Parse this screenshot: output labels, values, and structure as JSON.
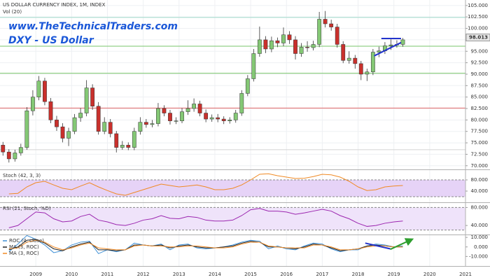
{
  "chart_data": [
    {
      "type": "candlestick",
      "title": "US DOLLAR CURRENCY INDEX, 1M, INDEX",
      "subtitle": "Vol (20)",
      "website": "www.TheTechnicalTraders.com",
      "label": "DXY - US Dollar",
      "x": [
        2008.083,
        2008.25,
        2008.417,
        2008.583,
        2008.75,
        2008.917,
        2009.083,
        2009.25,
        2009.417,
        2009.583,
        2009.75,
        2009.917,
        2010.083,
        2010.25,
        2010.417,
        2010.583,
        2010.75,
        2010.917,
        2011.083,
        2011.25,
        2011.417,
        2011.583,
        2011.75,
        2011.917,
        2012.083,
        2012.25,
        2012.417,
        2012.583,
        2012.75,
        2012.917,
        2013.083,
        2013.25,
        2013.417,
        2013.583,
        2013.75,
        2013.917,
        2014.083,
        2014.25,
        2014.417,
        2014.583,
        2014.75,
        2014.917,
        2015.083,
        2015.25,
        2015.417,
        2015.583,
        2015.75,
        2015.917,
        2016.083,
        2016.25,
        2016.417,
        2016.583,
        2016.75,
        2016.917,
        2017.083,
        2017.25,
        2017.417,
        2017.583,
        2017.75,
        2017.917,
        2018.083,
        2018.25,
        2018.417,
        2018.583,
        2018.75,
        2018.917,
        2019.083,
        2019.25
      ],
      "open": [
        74.5,
        73,
        71.5,
        72.8,
        74,
        82,
        85,
        88.5,
        84,
        80,
        78.5,
        76,
        77.5,
        80.5,
        81.5,
        87,
        83,
        77.5,
        79.5,
        77,
        74,
        74.5,
        74,
        77.5,
        79.5,
        79,
        79.2,
        82.5,
        81.5,
        79.8,
        79.8,
        81.8,
        82.5,
        83.5,
        81.5,
        80.2,
        80.5,
        80.2,
        79.8,
        80,
        81.5,
        85.8,
        89,
        94.5,
        97.5,
        95.5,
        97.3,
        96.8,
        98.6,
        97.5,
        94.5,
        95.9,
        95.8,
        96.5,
        102,
        101,
        100.3,
        96.5,
        93,
        93.5,
        92.3,
        90,
        90.5,
        94.8,
        95.1,
        96.2,
        96.4,
        96.5
      ],
      "high": [
        75.2,
        73.6,
        73.5,
        74.8,
        82.8,
        86.5,
        89.6,
        89.2,
        84.8,
        80.9,
        79.3,
        78.3,
        81.3,
        82.6,
        88.7,
        87.8,
        83.9,
        80.6,
        80.2,
        77.6,
        75.4,
        75.1,
        78.3,
        80.6,
        80.2,
        80,
        83.7,
        83.2,
        82.2,
        80.6,
        82.6,
        84.3,
        84.7,
        84.2,
        82.3,
        81.2,
        81.3,
        80.8,
        80.6,
        82.2,
        86.5,
        89.8,
        95.5,
        100.4,
        98.3,
        98.2,
        98,
        100.2,
        99.4,
        98.3,
        96.8,
        97.2,
        97.3,
        103.6,
        103.8,
        101.9,
        101,
        97.2,
        95,
        94.2,
        92.9,
        91.2,
        95.5,
        96,
        97,
        97.6,
        97.4,
        97.9
      ],
      "low": [
        72.2,
        70.7,
        70.9,
        72.2,
        73.5,
        81,
        84.3,
        83.2,
        79.3,
        77.6,
        75.1,
        74.3,
        76.9,
        79.6,
        80.8,
        82.2,
        76.8,
        76.9,
        76.2,
        72.9,
        73.5,
        73.4,
        73.4,
        76.8,
        78.3,
        78.4,
        78.6,
        80.8,
        79,
        79.1,
        79.3,
        81.1,
        81.8,
        80.8,
        79.5,
        79.6,
        79.5,
        79.1,
        79.2,
        79.4,
        80.9,
        85.2,
        88.4,
        93.8,
        94.6,
        94.8,
        95.9,
        96.1,
        96.6,
        93.2,
        93.8,
        94.9,
        95.2,
        95.9,
        100.2,
        99.5,
        95.8,
        92.4,
        92.3,
        91.2,
        88.7,
        88.5,
        89.8,
        93.7,
        94.4,
        95.3,
        95.8,
        96
      ],
      "close": [
        73,
        71.5,
        72.8,
        74,
        82,
        85,
        88.5,
        84,
        80,
        78.5,
        76,
        77.5,
        80.5,
        81.5,
        87,
        83,
        77.5,
        79.5,
        77,
        74,
        74.5,
        74,
        77.5,
        79.5,
        79,
        79.2,
        82.5,
        81.5,
        79.8,
        79.8,
        81.8,
        82.5,
        83.5,
        81.5,
        80.2,
        80.5,
        80.2,
        79.8,
        80,
        81.5,
        85.8,
        89,
        94.5,
        97.5,
        95.5,
        97.3,
        96.8,
        98.6,
        97.5,
        94.5,
        95.9,
        95.8,
        96.5,
        102,
        101,
        100.3,
        96.5,
        93,
        93.5,
        92.3,
        90,
        90.5,
        94.8,
        95.1,
        96.2,
        96.4,
        96.5,
        97.5
      ],
      "up_color": "#84c875",
      "down_color": "#c9302c",
      "xlim": [
        2008.0,
        2021.0
      ],
      "xticks": [
        2009,
        2010,
        2011,
        2012,
        2013,
        2014,
        2015,
        2016,
        2017,
        2018,
        2019,
        2020,
        2021
      ],
      "ylim": [
        69.2,
        106.2
      ],
      "yticks": [
        {
          "value": 70,
          "label": "70.000"
        },
        {
          "value": 72.5,
          "label": "72.500"
        },
        {
          "value": 75,
          "label": "75.000"
        },
        {
          "value": 77.5,
          "label": "77.500"
        },
        {
          "value": 80,
          "label": "80.000"
        },
        {
          "value": 82.5,
          "label": "82.500"
        },
        {
          "value": 85,
          "label": "85.000"
        },
        {
          "value": 87.5,
          "label": "87.500"
        },
        {
          "value": 90,
          "label": "90.000"
        },
        {
          "value": 92.5,
          "label": "92.500"
        },
        {
          "value": 95,
          "label": "95.000"
        },
        {
          "value": 97.5,
          "label": "97.500"
        },
        {
          "value": 100,
          "label": "100.000"
        },
        {
          "value": 102.5,
          "label": "102.500"
        },
        {
          "value": 105,
          "label": "105.000"
        }
      ],
      "grid": true,
      "levels": [
        {
          "value": 102.4,
          "color": "#9fd9c9"
        },
        {
          "value": 96.1,
          "color": "#79c66b"
        },
        {
          "value": 90.2,
          "color": "#79c66b"
        },
        {
          "value": 82.6,
          "color": "#e06666"
        },
        {
          "value": 73.5,
          "color": "#d4d4d4"
        }
      ],
      "last_price": 98.013,
      "trendlines": [
        {
          "x": [
            2018.65,
            2019.2
          ],
          "y": [
            97.8,
            97.8
          ],
          "color": "#2233cc"
        },
        {
          "x": [
            2018.45,
            2019.2
          ],
          "y": [
            94,
            96.9
          ],
          "color": "#2233cc"
        }
      ]
    },
    {
      "type": "line",
      "title": "Stoch (42, 3, 3)",
      "x": [
        2008.25,
        2008.5,
        2008.75,
        2009,
        2009.25,
        2009.5,
        2009.75,
        2010,
        2010.25,
        2010.5,
        2010.75,
        2011,
        2011.25,
        2011.5,
        2011.75,
        2012,
        2012.25,
        2012.5,
        2012.75,
        2013,
        2013.25,
        2013.5,
        2013.75,
        2014,
        2014.25,
        2014.5,
        2014.75,
        2015,
        2015.25,
        2015.5,
        2015.75,
        2016,
        2016.25,
        2016.5,
        2016.75,
        2017,
        2017.25,
        2017.5,
        2017.75,
        2018,
        2018.25,
        2018.5,
        2018.75,
        2019,
        2019.25
      ],
      "values": [
        30,
        32,
        55,
        70,
        75,
        62,
        50,
        45,
        58,
        70,
        55,
        42,
        30,
        25,
        35,
        45,
        55,
        65,
        60,
        55,
        58,
        62,
        55,
        45,
        45,
        50,
        62,
        80,
        100,
        102,
        95,
        90,
        85,
        86,
        92,
        100,
        98,
        90,
        75,
        55,
        42,
        45,
        55,
        58,
        60
      ],
      "color": "#f08a24",
      "ylim": [
        0,
        115
      ],
      "yticks": [
        {
          "value": 80,
          "label": "80.000"
        },
        {
          "value": 40,
          "label": "40.000"
        }
      ],
      "band": [
        20,
        80
      ],
      "band_color": "#e6d3f7"
    },
    {
      "type": "line",
      "title": "RSI (21, Stoch, %D)",
      "x": [
        2008.25,
        2008.5,
        2008.75,
        2009,
        2009.25,
        2009.5,
        2009.75,
        2010,
        2010.25,
        2010.5,
        2010.75,
        2011,
        2011.25,
        2011.5,
        2011.75,
        2012,
        2012.25,
        2012.5,
        2012.75,
        2013,
        2013.25,
        2013.5,
        2013.75,
        2014,
        2014.25,
        2014.5,
        2014.75,
        2015,
        2015.25,
        2015.5,
        2015.75,
        2016,
        2016.25,
        2016.5,
        2016.75,
        2017,
        2017.25,
        2017.5,
        2017.75,
        2018,
        2018.25,
        2018.5,
        2018.75,
        2019,
        2019.25
      ],
      "values": [
        35,
        40,
        55,
        70,
        68,
        55,
        48,
        50,
        60,
        65,
        52,
        48,
        42,
        40,
        45,
        52,
        55,
        62,
        56,
        55,
        60,
        58,
        52,
        50,
        50,
        52,
        62,
        75,
        78,
        72,
        72,
        70,
        65,
        68,
        72,
        76,
        72,
        62,
        55,
        45,
        38,
        40,
        45,
        48,
        50
      ],
      "color": "#9c27b0",
      "ylim": [
        20,
        90
      ],
      "yticks": [
        {
          "value": 80,
          "label": "80.000"
        },
        {
          "value": 40,
          "label": "40.000"
        }
      ],
      "band": [
        30,
        80
      ],
      "band_color": "#efe3fa"
    },
    {
      "type": "line",
      "x": [
        2008.25,
        2008.5,
        2008.75,
        2009,
        2009.25,
        2009.5,
        2009.75,
        2010,
        2010.25,
        2010.5,
        2010.75,
        2011,
        2011.25,
        2011.5,
        2011.75,
        2012,
        2012.25,
        2012.5,
        2012.75,
        2013,
        2013.25,
        2013.5,
        2013.75,
        2014,
        2014.25,
        2014.5,
        2014.75,
        2015,
        2015.25,
        2015.5,
        2015.75,
        2016,
        2016.25,
        2016.5,
        2016.75,
        2017,
        2017.25,
        2017.5,
        2017.75,
        2018,
        2018.25,
        2018.5,
        2018.75,
        2019,
        2019.25
      ],
      "series": [
        {
          "name": "ROC (4, close)",
          "color": "#3d8fd6",
          "values": [
            -5,
            3,
            12,
            8,
            2,
            -6,
            -4,
            2,
            5,
            6,
            -7,
            -3,
            -5,
            -3,
            4,
            2,
            1,
            3,
            -3,
            2,
            3,
            -1,
            -2,
            -1,
            0,
            2,
            5,
            7,
            6,
            -2,
            1,
            -2,
            -3,
            1,
            4,
            3,
            -2,
            -5,
            -3,
            -3,
            1,
            3,
            2,
            0,
            1
          ]
        },
        {
          "name": "MA (3, ROC)",
          "color": "#222222",
          "values": [
            -3,
            0,
            7,
            8,
            4,
            -2,
            -4,
            0,
            3,
            5,
            -3,
            -3,
            -4,
            -3,
            2,
            2,
            1,
            2,
            -1,
            1,
            2,
            0,
            -1,
            -1,
            0,
            1,
            4,
            6,
            5,
            0,
            0,
            -1,
            -2,
            0,
            3,
            2,
            -1,
            -4,
            -3,
            -2,
            1,
            2,
            1,
            0,
            0
          ]
        },
        {
          "name": "MA (3, ROC)",
          "color": "#f08a24",
          "values": [
            -2,
            -1,
            5,
            7,
            5,
            0,
            -3,
            -1,
            2,
            4,
            -1,
            -2,
            -3,
            -3,
            1,
            2,
            1,
            1,
            0,
            0,
            1,
            1,
            0,
            -1,
            -1,
            0,
            3,
            5,
            5,
            1,
            0,
            -1,
            -1,
            -1,
            2,
            2,
            0,
            -3,
            -3,
            -2,
            0,
            1,
            1,
            0,
            0
          ]
        }
      ],
      "ylim": [
        -20,
        12.3
      ],
      "yticks": [
        {
          "value": 10,
          "label": "10.000"
        },
        {
          "value": 0,
          "label": "0.000"
        },
        {
          "value": -10,
          "label": "-10.000"
        }
      ],
      "trendlines": [
        {
          "x": [
            2018.2,
            2018.9
          ],
          "y": [
            4,
            -2
          ],
          "color": "#2233cc"
        },
        {
          "x": [
            2018.9,
            2019.45
          ],
          "y": [
            -2.5,
            7
          ],
          "color": "#2e9e2e",
          "arrow": true
        }
      ]
    }
  ]
}
